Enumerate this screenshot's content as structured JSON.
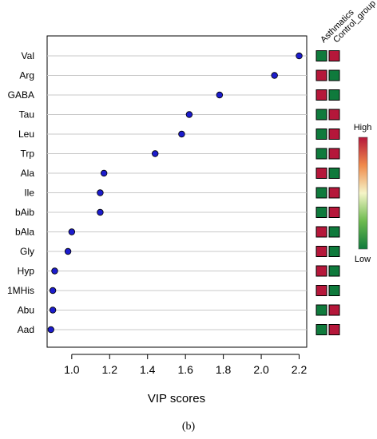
{
  "chart_data": {
    "type": "scatter",
    "orientation": "horizontal",
    "xlabel": "VIP scores",
    "xlim": [
      0.87,
      2.24
    ],
    "xticks": [
      1.0,
      1.2,
      1.4,
      1.6,
      1.8,
      2.0,
      2.2
    ],
    "xtick_labels": [
      "1.0",
      "1.2",
      "1.4",
      "1.6",
      "1.8",
      "2.0",
      "2.2"
    ],
    "grid": "horizontal lines",
    "categories": [
      "Val",
      "Arg",
      "GABA",
      "Tau",
      "Leu",
      "Trp",
      "Ala",
      "Ile",
      "bAib",
      "bAla",
      "Gly",
      "Hyp",
      "1MHis",
      "Abu",
      "Aad"
    ],
    "values": [
      2.2,
      2.07,
      1.78,
      1.62,
      1.58,
      1.44,
      1.17,
      1.15,
      1.15,
      1.0,
      0.98,
      0.91,
      0.9,
      0.9,
      0.89
    ],
    "point_color": "#1c1ccc",
    "heatmap": {
      "columns": [
        "Asthmatics",
        "Control_group"
      ],
      "levels": [
        [
          "low",
          "high"
        ],
        [
          "high",
          "low"
        ],
        [
          "high",
          "low"
        ],
        [
          "low",
          "high"
        ],
        [
          "low",
          "high"
        ],
        [
          "low",
          "high"
        ],
        [
          "high",
          "low"
        ],
        [
          "low",
          "high"
        ],
        [
          "low",
          "high"
        ],
        [
          "high",
          "low"
        ],
        [
          "high",
          "low"
        ],
        [
          "high",
          "low"
        ],
        [
          "high",
          "low"
        ],
        [
          "low",
          "high"
        ],
        [
          "low",
          "high"
        ]
      ],
      "high_color": "#b5173a",
      "low_color": "#0f7a3c"
    },
    "legend": {
      "high_label": "High",
      "low_label": "Low",
      "colors": [
        "#0f7a3c",
        "#6dbb4f",
        "#f5f5c8",
        "#f08a4b",
        "#b5173a"
      ],
      "placement": "right"
    }
  },
  "caption": "(b)"
}
